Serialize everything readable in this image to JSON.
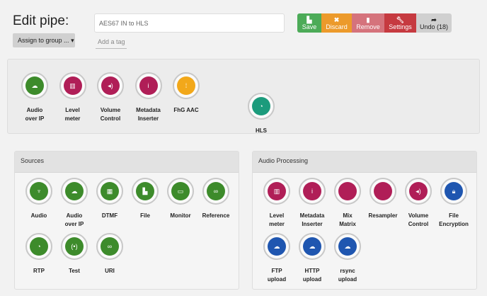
{
  "header": {
    "title": "Edit pipe:",
    "assign_label": "Assign to group ...",
    "pipe_name": "AES67 IN to HLS",
    "tag_placeholder": "Add a tag"
  },
  "toolbar": [
    {
      "key": "save",
      "label": "Save",
      "icon": "floppy-icon",
      "glyph": "▙",
      "color": "#4cab58"
    },
    {
      "key": "discard",
      "label": "Discard",
      "icon": "close-icon",
      "glyph": "✖",
      "color": "#ec9a2b"
    },
    {
      "key": "remove",
      "label": "Remove",
      "icon": "trash-icon",
      "glyph": "▮",
      "color": "#d5737c"
    },
    {
      "key": "settings",
      "label": "Settings",
      "icon": "wrench-icon",
      "glyph": "🔧︎",
      "color": "#c63a40"
    },
    {
      "key": "undo",
      "label": "Undo (18)",
      "icon": "undo-arrow-icon",
      "glyph": "➦",
      "color": "#d0d0d0"
    }
  ],
  "pipeline": {
    "nodes": [
      {
        "label": "Audio\nover IP",
        "icon": "cloud-upload-icon",
        "glyph": "☁",
        "color": "#3d8b2b"
      },
      {
        "label": "Level\nmeter",
        "icon": "bar-chart-icon",
        "glyph": "▥",
        "color": "#b01e57"
      },
      {
        "label": "Volume\nControl",
        "icon": "volume-icon",
        "glyph": "◂)",
        "color": "#b01e57"
      },
      {
        "label": "Metadata\nInserter",
        "icon": "info-icon",
        "glyph": "i",
        "color": "#b01e57"
      },
      {
        "label": "FhG AAC",
        "icon": "waveform-icon",
        "glyph": "⁞",
        "color": "#f2a81a"
      }
    ],
    "sink": {
      "label": "HLS",
      "icon": "hls-icon",
      "glyph": "◔",
      "color": "#1c9b7c"
    }
  },
  "sources": {
    "title": "Sources",
    "nodes": [
      {
        "label": "Audio",
        "icon": "microphone-icon",
        "glyph": "♆",
        "color": "#3d8b2b"
      },
      {
        "label": "Audio\nover IP",
        "icon": "cloud-upload-icon",
        "glyph": "☁",
        "color": "#3d8b2b"
      },
      {
        "label": "DTMF",
        "icon": "keypad-icon",
        "glyph": "▦",
        "color": "#3d8b2b"
      },
      {
        "label": "File",
        "icon": "file-icon",
        "glyph": "▙",
        "color": "#3d8b2b"
      },
      {
        "label": "Monitor",
        "icon": "monitor-icon",
        "glyph": "▭",
        "color": "#3d8b2b"
      },
      {
        "label": "Reference",
        "icon": "link-icon",
        "glyph": "∞",
        "color": "#3d8b2b"
      },
      {
        "label": "RTP",
        "icon": "rtp-icon",
        "glyph": "◔",
        "color": "#3d8b2b"
      },
      {
        "label": "Test",
        "icon": "broadcast-icon",
        "glyph": "(•)",
        "color": "#3d8b2b"
      },
      {
        "label": "URI",
        "icon": "link-icon",
        "glyph": "∞",
        "color": "#3d8b2b"
      }
    ]
  },
  "audio_processing": {
    "title": "Audio Processing",
    "nodes": [
      {
        "label": "Level\nmeter",
        "icon": "bar-chart-icon",
        "glyph": "▥",
        "color": "#b01e57"
      },
      {
        "label": "Metadata\nInserter",
        "icon": "info-icon",
        "glyph": "i",
        "color": "#b01e57"
      },
      {
        "label": "Mix\nMatrix",
        "icon": "blank-icon",
        "glyph": "",
        "color": "#b01e57"
      },
      {
        "label": "Resampler",
        "icon": "blank-icon",
        "glyph": "",
        "color": "#b01e57"
      },
      {
        "label": "Volume\nControl",
        "icon": "volume-icon",
        "glyph": "◂)",
        "color": "#b01e57"
      },
      {
        "label": "File\nEncryption",
        "icon": "lock-icon",
        "glyph": "🔒︎",
        "color": "#1f56b0"
      },
      {
        "label": "FTP\nupload",
        "icon": "cloud-upload-icon",
        "glyph": "☁",
        "color": "#1f56b0"
      },
      {
        "label": "HTTP\nupload",
        "icon": "cloud-upload-icon",
        "glyph": "☁",
        "color": "#1f56b0"
      },
      {
        "label": "rsync\nupload",
        "icon": "cloud-upload-icon",
        "glyph": "☁",
        "color": "#1f56b0"
      }
    ]
  }
}
